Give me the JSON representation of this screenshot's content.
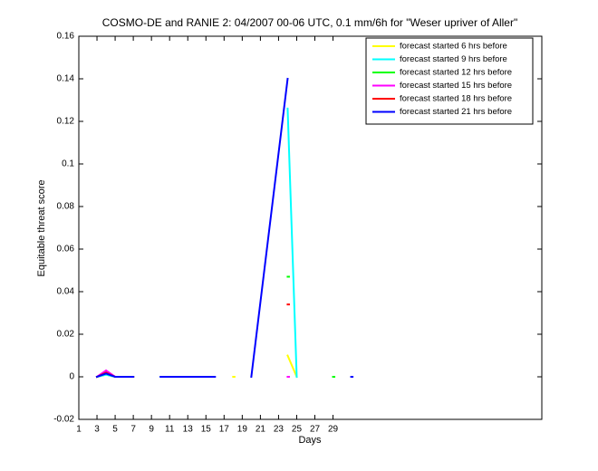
{
  "chart_data": {
    "type": "line",
    "title": "COSMO-DE and RANIE 2: 04/2007 00-06 UTC, 0.1 mm/6h for \"Weser upriver of Aller\"",
    "x_label": "Days",
    "y_label": "Equitable threat score",
    "x": [
      3,
      4,
      5,
      6,
      7,
      8,
      10,
      11,
      16,
      18,
      20,
      24,
      25,
      29,
      31
    ],
    "series": [
      {
        "name": "forecast started 6 hrs before",
        "color": "#ffff00",
        "values": [
          0,
          0.001,
          0,
          0,
          0,
          null,
          null,
          null,
          null,
          0,
          null,
          0.01,
          0,
          null,
          null
        ]
      },
      {
        "name": "forecast started 9 hrs before",
        "color": "#00ffff",
        "values": [
          0,
          0.001,
          0,
          0,
          0,
          null,
          0,
          0,
          null,
          null,
          null,
          0.126,
          0,
          null,
          null
        ]
      },
      {
        "name": "forecast started 12 hrs before",
        "color": "#00ff00",
        "values": [
          0,
          0.002,
          0,
          0,
          0,
          null,
          null,
          null,
          null,
          null,
          null,
          0.047,
          null,
          0,
          null
        ]
      },
      {
        "name": "forecast started 15 hrs before",
        "color": "#ff00ff",
        "values": [
          0,
          0.003,
          0,
          0,
          0,
          null,
          null,
          null,
          null,
          null,
          null,
          0,
          null,
          null,
          null
        ]
      },
      {
        "name": "forecast started 18 hrs before",
        "color": "#ff0000",
        "values": [
          0,
          0.002,
          0,
          0,
          0,
          null,
          null,
          null,
          null,
          null,
          null,
          0.034,
          null,
          null,
          null
        ]
      },
      {
        "name": "forecast started 21 hrs before",
        "color": "#0000ff",
        "values": [
          0,
          0.0015,
          0,
          0,
          0,
          null,
          0,
          0,
          0,
          null,
          0,
          0.14,
          null,
          null,
          0
        ]
      }
    ],
    "xlim": [
      1,
      52
    ],
    "xticks": [
      1,
      3,
      5,
      7,
      9,
      11,
      13,
      15,
      17,
      19,
      21,
      23,
      25,
      27,
      29
    ],
    "ylim": [
      -0.02,
      0.16
    ],
    "yticks": [
      -0.02,
      0,
      0.02,
      0.04,
      0.06,
      0.08,
      0.1,
      0.12,
      0.14,
      0.16
    ],
    "legend": "upper right",
    "grid": false
  }
}
